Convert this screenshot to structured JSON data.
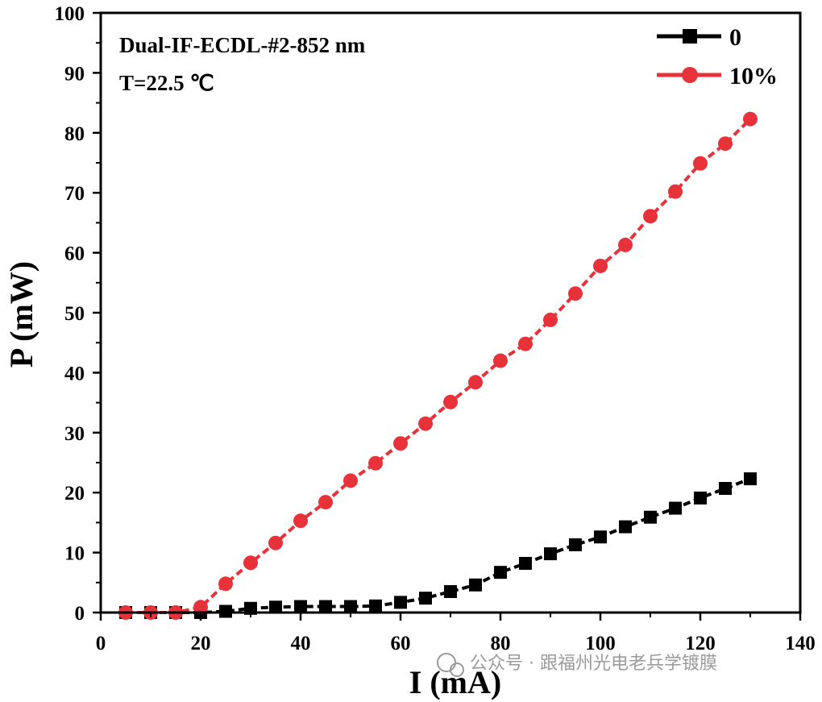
{
  "chart_data": {
    "type": "line",
    "annotation_lines": [
      "Dual-IF-ECDL-#2-852 nm",
      "T=22.5 ℃"
    ],
    "xlabel": "I (mA)",
    "ylabel": "P (mW)",
    "xlim": [
      0,
      140
    ],
    "ylim": [
      0,
      100
    ],
    "x_ticks": [
      0,
      20,
      40,
      60,
      80,
      100,
      120,
      140
    ],
    "y_ticks": [
      0,
      10,
      20,
      30,
      40,
      50,
      60,
      70,
      80,
      90,
      100
    ],
    "legend_position": "top-right",
    "x": [
      5,
      10,
      15,
      20,
      25,
      30,
      35,
      40,
      45,
      50,
      55,
      60,
      65,
      70,
      75,
      80,
      85,
      90,
      95,
      100,
      105,
      110,
      115,
      120,
      125,
      130
    ],
    "series": [
      {
        "name": "0",
        "color": "#000000",
        "marker": "square",
        "values": [
          0,
          0,
          0,
          0,
          0.2,
          0.7,
          0.9,
          1.0,
          1.0,
          1.0,
          1.1,
          1.7,
          2.4,
          3.5,
          4.6,
          6.7,
          8.2,
          9.8,
          11.3,
          12.6,
          14.3,
          15.9,
          17.4,
          19.1,
          20.7,
          22.3
        ]
      },
      {
        "name": "10%",
        "color": "#e8323a",
        "marker": "circle",
        "values": [
          0,
          0,
          0,
          0.9,
          4.8,
          8.3,
          11.6,
          15.3,
          18.4,
          22.0,
          24.9,
          28.2,
          31.5,
          35.1,
          38.4,
          42.0,
          44.8,
          48.8,
          53.2,
          57.8,
          61.3,
          66.1,
          70.2,
          74.9,
          78.2,
          82.3
        ]
      }
    ]
  },
  "watermark": "公众号 · 跟福州光电老兵学镀膜"
}
